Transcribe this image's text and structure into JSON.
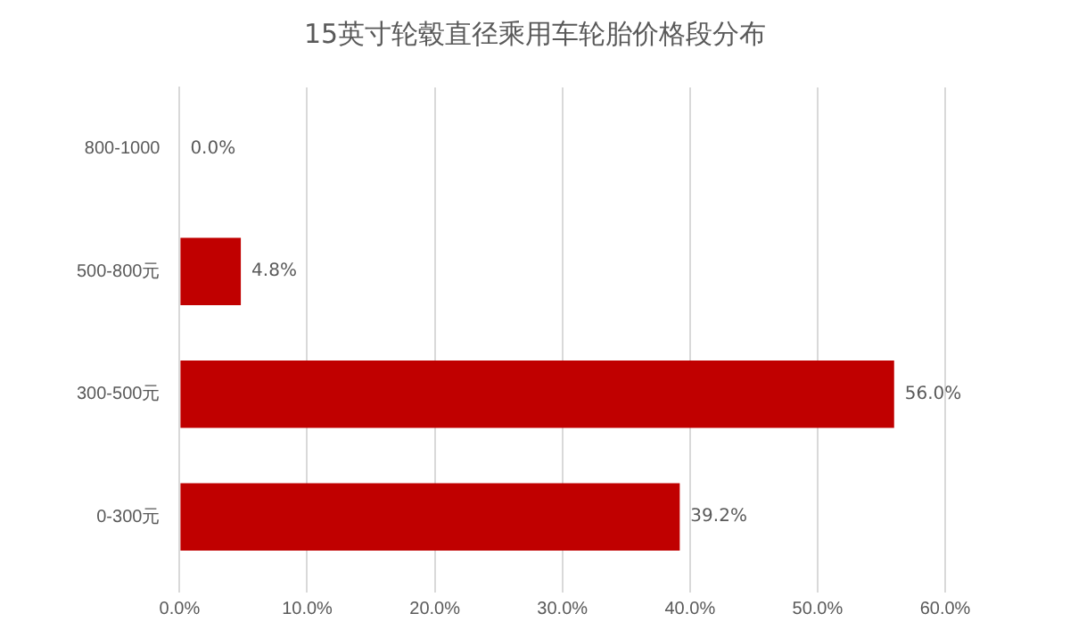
{
  "chart_data": {
    "type": "bar",
    "orientation": "horizontal",
    "title": "15英寸轮毂直径乘用车轮胎价格段分布",
    "categories": [
      "800-1000",
      "500-800元",
      "300-500元",
      "0-300元"
    ],
    "values": [
      0.0,
      4.8,
      56.0,
      39.2
    ],
    "value_labels": [
      "0.0%",
      "4.8%",
      "56.0%",
      "39.2%"
    ],
    "color": "#c00000",
    "xlim": [
      0,
      60
    ],
    "xticks": [
      {
        "value": 0,
        "label": "0.0%"
      },
      {
        "value": 10,
        "label": "10.0%"
      },
      {
        "value": 20,
        "label": "20.0%"
      },
      {
        "value": 30,
        "label": "30.0%"
      },
      {
        "value": 40,
        "label": "40.0%"
      },
      {
        "value": 50,
        "label": "50.0%"
      },
      {
        "value": 60,
        "label": "60.0%"
      }
    ],
    "grid": "x"
  }
}
